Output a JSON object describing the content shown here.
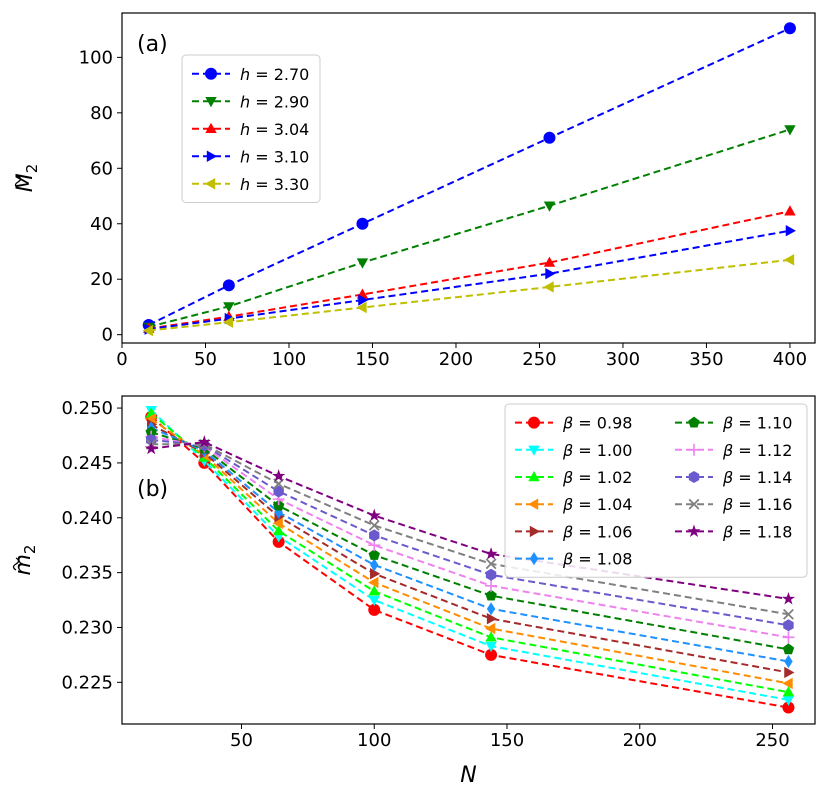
{
  "chart_data": [
    {
      "type": "line",
      "panel_label": "(a)",
      "title": "",
      "xlabel": "",
      "ylabel_base": "M",
      "ylabel_sub": "2",
      "xlim": [
        0,
        415
      ],
      "ylim": [
        -3,
        116
      ],
      "xticks": [
        0,
        50,
        100,
        150,
        200,
        250,
        300,
        350,
        400
      ],
      "yticks": [
        0,
        20,
        40,
        60,
        80,
        100
      ],
      "ytick_labels": [
        "0",
        "20",
        "40",
        "60",
        "80",
        "100"
      ],
      "legend": {
        "placement": "upper-left",
        "columns": 1
      },
      "x": [
        16,
        64,
        144,
        256,
        400
      ],
      "series": [
        {
          "name": "h = 2.70",
          "var": "h",
          "val": "2.70",
          "color": "#0000ff",
          "marker": "circle",
          "values": [
            3.5,
            17.8,
            40.0,
            71.0,
            110.5
          ]
        },
        {
          "name": "h = 2.90",
          "var": "h",
          "val": "2.90",
          "color": "#008000",
          "marker": "triangle-down",
          "values": [
            2.8,
            10.2,
            26.0,
            46.5,
            74.0
          ]
        },
        {
          "name": "h = 3.04",
          "var": "h",
          "val": "3.04",
          "color": "#ff0000",
          "marker": "triangle-up",
          "values": [
            2.2,
            6.5,
            14.5,
            26.0,
            44.5
          ]
        },
        {
          "name": "h = 3.10",
          "var": "h",
          "val": "3.10",
          "color": "#0000ff",
          "marker": "triangle-right",
          "values": [
            2.0,
            5.8,
            12.5,
            22.0,
            37.5
          ]
        },
        {
          "name": "h = 3.30",
          "var": "h",
          "val": "3.30",
          "color": "#bfbf00",
          "marker": "triangle-left",
          "values": [
            1.5,
            4.5,
            9.8,
            17.2,
            27.0
          ]
        }
      ]
    },
    {
      "type": "line",
      "panel_label": "(b)",
      "title": "",
      "xlabel": "N",
      "ylabel_base": "m",
      "ylabel_sub": "2",
      "xlim": [
        5,
        266
      ],
      "ylim": [
        0.2212,
        0.2511
      ],
      "xticks": [
        50,
        100,
        150,
        200,
        250
      ],
      "yticks": [
        0.225,
        0.23,
        0.235,
        0.24,
        0.245,
        0.25
      ],
      "ytick_labels": [
        "0.225",
        "0.230",
        "0.235",
        "0.240",
        "0.245",
        "0.250"
      ],
      "legend": {
        "placement": "upper-right",
        "columns": 2
      },
      "x": [
        16,
        36,
        64,
        100,
        144,
        256
      ],
      "series": [
        {
          "name": "β = 0.98",
          "var": "β",
          "val": "0.98",
          "color": "#ff0000",
          "marker": "circle",
          "values": [
            0.2492,
            0.245,
            0.2378,
            0.2316,
            0.2275,
            0.2227
          ]
        },
        {
          "name": "β = 1.00",
          "var": "β",
          "val": "1.00",
          "color": "#00ffff",
          "marker": "triangle-down",
          "values": [
            0.2498,
            0.2452,
            0.2383,
            0.2325,
            0.2283,
            0.2234
          ]
        },
        {
          "name": "β = 1.02",
          "var": "β",
          "val": "1.02",
          "color": "#00ff00",
          "marker": "triangle-up",
          "values": [
            0.2495,
            0.2455,
            0.2388,
            0.2333,
            0.2291,
            0.2241
          ]
        },
        {
          "name": "β = 1.04",
          "var": "β",
          "val": "1.04",
          "color": "#ff8c00",
          "marker": "triangle-left",
          "values": [
            0.249,
            0.2457,
            0.2395,
            0.2341,
            0.2299,
            0.2249
          ]
        },
        {
          "name": "β = 1.06",
          "var": "β",
          "val": "1.06",
          "color": "#a52a2a",
          "marker": "triangle-right",
          "values": [
            0.2485,
            0.2459,
            0.2401,
            0.2349,
            0.2308,
            0.2259
          ]
        },
        {
          "name": "β = 1.08",
          "var": "β",
          "val": "1.08",
          "color": "#1e90ff",
          "marker": "diamond",
          "values": [
            0.2482,
            0.2461,
            0.2405,
            0.2357,
            0.2317,
            0.2269
          ]
        },
        {
          "name": "β = 1.10",
          "var": "β",
          "val": "1.10",
          "color": "#008000",
          "marker": "pentagon",
          "values": [
            0.2478,
            0.2463,
            0.2411,
            0.2366,
            0.2329,
            0.228
          ]
        },
        {
          "name": "β = 1.12",
          "var": "β",
          "val": "1.12",
          "color": "#ee82ee",
          "marker": "plus",
          "values": [
            0.2474,
            0.2465,
            0.2417,
            0.2375,
            0.2338,
            0.2291
          ]
        },
        {
          "name": "β = 1.14",
          "var": "β",
          "val": "1.14",
          "color": "#6a5acd",
          "marker": "hexagon",
          "values": [
            0.2471,
            0.2466,
            0.2424,
            0.2384,
            0.2348,
            0.2302
          ]
        },
        {
          "name": "β = 1.16",
          "var": "β",
          "val": "1.16",
          "color": "#808080",
          "marker": "x",
          "values": [
            0.2467,
            0.2467,
            0.2431,
            0.2393,
            0.2358,
            0.2312
          ]
        },
        {
          "name": "β = 1.18",
          "var": "β",
          "val": "1.18",
          "color": "#800080",
          "marker": "star",
          "values": [
            0.2463,
            0.2469,
            0.2438,
            0.2402,
            0.2367,
            0.2326
          ]
        }
      ]
    }
  ]
}
